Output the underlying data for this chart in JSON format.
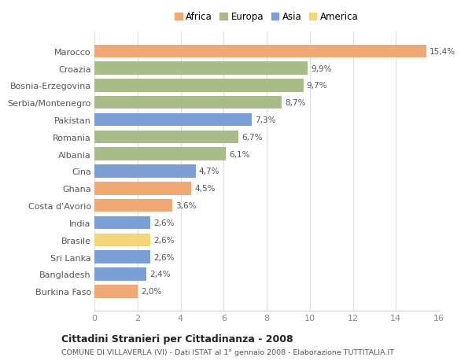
{
  "categories": [
    "Burkina Faso",
    "Bangladesh",
    "Sri Lanka",
    "Brasile",
    "India",
    "Costa d'Avorio",
    "Ghana",
    "Cina",
    "Albania",
    "Romania",
    "Pakistan",
    "Serbia/Montenegro",
    "Bosnia-Erzegovina",
    "Croazia",
    "Marocco"
  ],
  "values": [
    2.0,
    2.4,
    2.6,
    2.6,
    2.6,
    3.6,
    4.5,
    4.7,
    6.1,
    6.7,
    7.3,
    8.7,
    9.7,
    9.9,
    15.4
  ],
  "colors": [
    "#f0a875",
    "#7b9fd4",
    "#7b9fd4",
    "#f5d57a",
    "#7b9fd4",
    "#f0a875",
    "#f0a875",
    "#7b9fd4",
    "#a8bc8a",
    "#a8bc8a",
    "#7b9fd4",
    "#a8bc8a",
    "#a8bc8a",
    "#a8bc8a",
    "#f0a875"
  ],
  "labels": [
    "2,0%",
    "2,4%",
    "2,6%",
    "2,6%",
    "2,6%",
    "3,6%",
    "4,5%",
    "4,7%",
    "6,1%",
    "6,7%",
    "7,3%",
    "8,7%",
    "9,7%",
    "9,9%",
    "15,4%"
  ],
  "legend": {
    "Africa": "#f0a875",
    "Europa": "#a8bc8a",
    "Asia": "#7b9fd4",
    "America": "#f5d57a"
  },
  "title": "Cittadini Stranieri per Cittadinanza - 2008",
  "subtitle": "COMUNE DI VILLAVERLA (VI) - Dati ISTAT al 1° gennaio 2008 - Elaborazione TUTTITALIA.IT",
  "xlim": [
    0,
    16
  ],
  "xticks": [
    0,
    2,
    4,
    6,
    8,
    10,
    12,
    14,
    16
  ],
  "background_color": "#ffffff",
  "bar_height": 0.75
}
